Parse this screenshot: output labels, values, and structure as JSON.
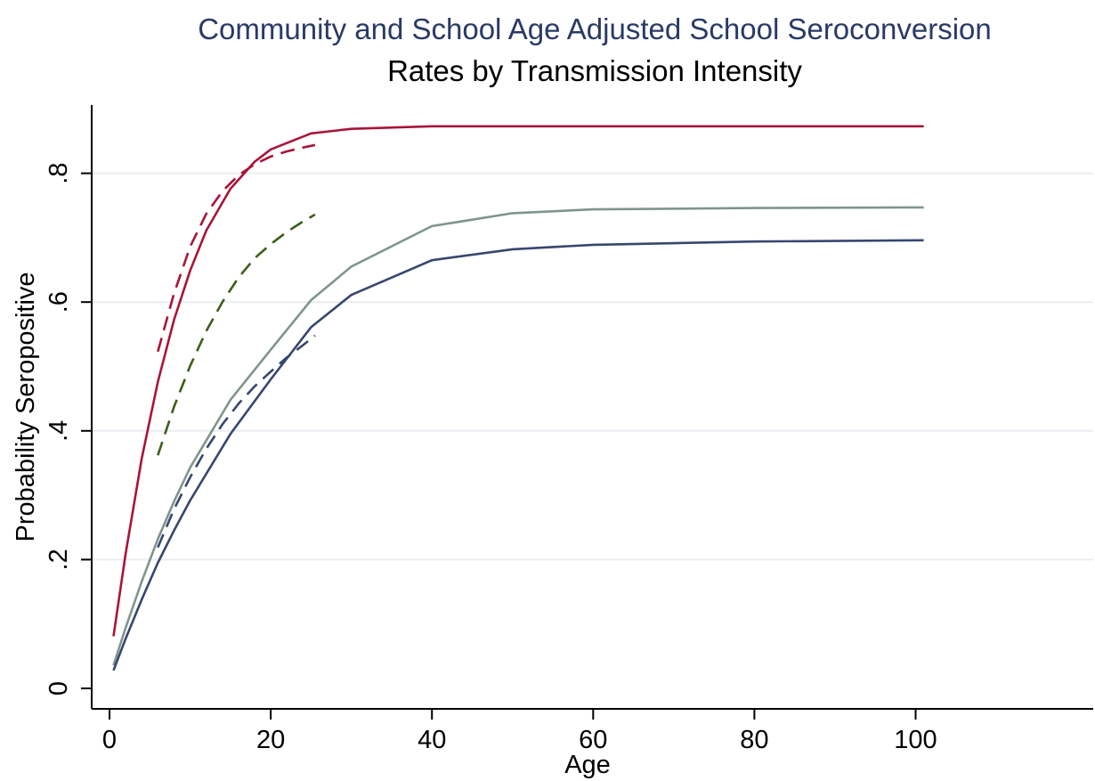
{
  "chart_data": {
    "type": "line",
    "title": "Community and School Age Adjusted School Seroconversion",
    "subtitle": "Rates by Transmission Intensity",
    "xlabel": "Age",
    "ylabel": "Probability Seropositive",
    "xlim": [
      0,
      100
    ],
    "ylim": [
      0,
      0.9
    ],
    "x_ticks": [
      0,
      20,
      40,
      60,
      80,
      100
    ],
    "x_tick_labels": [
      "0",
      "20",
      "40",
      "60",
      "80",
      "100"
    ],
    "y_ticks": [
      0,
      0.2,
      0.4,
      0.6,
      0.8
    ],
    "y_tick_labels": [
      "0",
      ".2",
      ".4",
      ".6",
      ".8"
    ],
    "grid": true,
    "legend": "none",
    "colors": {
      "title": "#2a3a66",
      "gridline": "#e8eef2",
      "red": "#a8143a",
      "gray_green": "#7f958c",
      "navy": "#36476f",
      "dark_green": "#3c5e1b"
    },
    "series": [
      {
        "style": "solid",
        "color": "#a8143a",
        "x": [
          0.5,
          2,
          4,
          6,
          8,
          10,
          12,
          15,
          18,
          20,
          25,
          30,
          40,
          50,
          60,
          80,
          101
        ],
        "y": [
          0.081,
          0.209,
          0.357,
          0.476,
          0.572,
          0.649,
          0.711,
          0.776,
          0.818,
          0.837,
          0.862,
          0.869,
          0.873,
          0.873,
          0.873,
          0.873,
          0.873
        ]
      },
      {
        "style": "solid",
        "color": "#7f958c",
        "x": [
          0.5,
          2,
          4,
          6,
          8,
          10,
          15,
          20,
          25,
          30,
          40,
          50,
          60,
          80,
          101
        ],
        "y": [
          0.036,
          0.094,
          0.166,
          0.232,
          0.29,
          0.343,
          0.448,
          0.526,
          0.603,
          0.655,
          0.718,
          0.738,
          0.744,
          0.746,
          0.747
        ]
      },
      {
        "style": "solid",
        "color": "#36476f",
        "x": [
          0.5,
          2,
          4,
          6,
          8,
          10,
          15,
          20,
          25,
          30,
          40,
          50,
          60,
          80,
          101
        ],
        "y": [
          0.028,
          0.077,
          0.138,
          0.195,
          0.245,
          0.292,
          0.395,
          0.48,
          0.561,
          0.611,
          0.665,
          0.682,
          0.689,
          0.694,
          0.696
        ]
      },
      {
        "style": "dashed",
        "color": "#a8143a",
        "x": [
          6,
          8,
          10,
          12,
          14,
          16,
          18,
          20,
          22,
          24,
          25.5
        ],
        "y": [
          0.523,
          0.613,
          0.686,
          0.737,
          0.772,
          0.797,
          0.814,
          0.826,
          0.834,
          0.84,
          0.844
        ]
      },
      {
        "style": "dashed",
        "color": "#3c5e1b",
        "x": [
          6,
          8,
          10,
          12,
          14,
          16,
          18,
          20,
          22,
          24,
          25.5
        ],
        "y": [
          0.362,
          0.437,
          0.501,
          0.555,
          0.6,
          0.638,
          0.668,
          0.69,
          0.709,
          0.725,
          0.736
        ]
      },
      {
        "style": "dashed",
        "color": "#36476f",
        "x": [
          6,
          8,
          10,
          12,
          14,
          16,
          18,
          20,
          22,
          24,
          25.5
        ],
        "y": [
          0.219,
          0.278,
          0.328,
          0.372,
          0.41,
          0.442,
          0.469,
          0.492,
          0.514,
          0.533,
          0.548
        ]
      }
    ]
  }
}
